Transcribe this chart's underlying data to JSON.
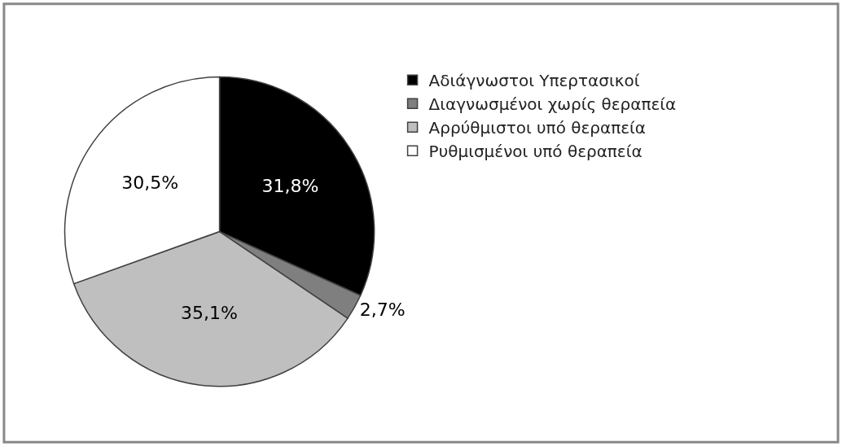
{
  "chart_data": {
    "type": "pie",
    "categories": [
      "Αδιάγνωστοι Υπερτασικοί",
      "Διαγνωσμένοι χωρίς θεραπεία",
      "Αρρύθμιστοι υπό θεραπεία",
      "Ρυθμισμένοι υπό θεραπεία"
    ],
    "values": [
      31.8,
      2.7,
      35.1,
      30.5
    ],
    "value_labels": [
      "31,8%",
      "2,7%",
      "35,1%",
      "30,5%"
    ],
    "colors": [
      "#000000",
      "#7f7f7f",
      "#bfbfbf",
      "#ffffff"
    ],
    "legend": "right"
  }
}
